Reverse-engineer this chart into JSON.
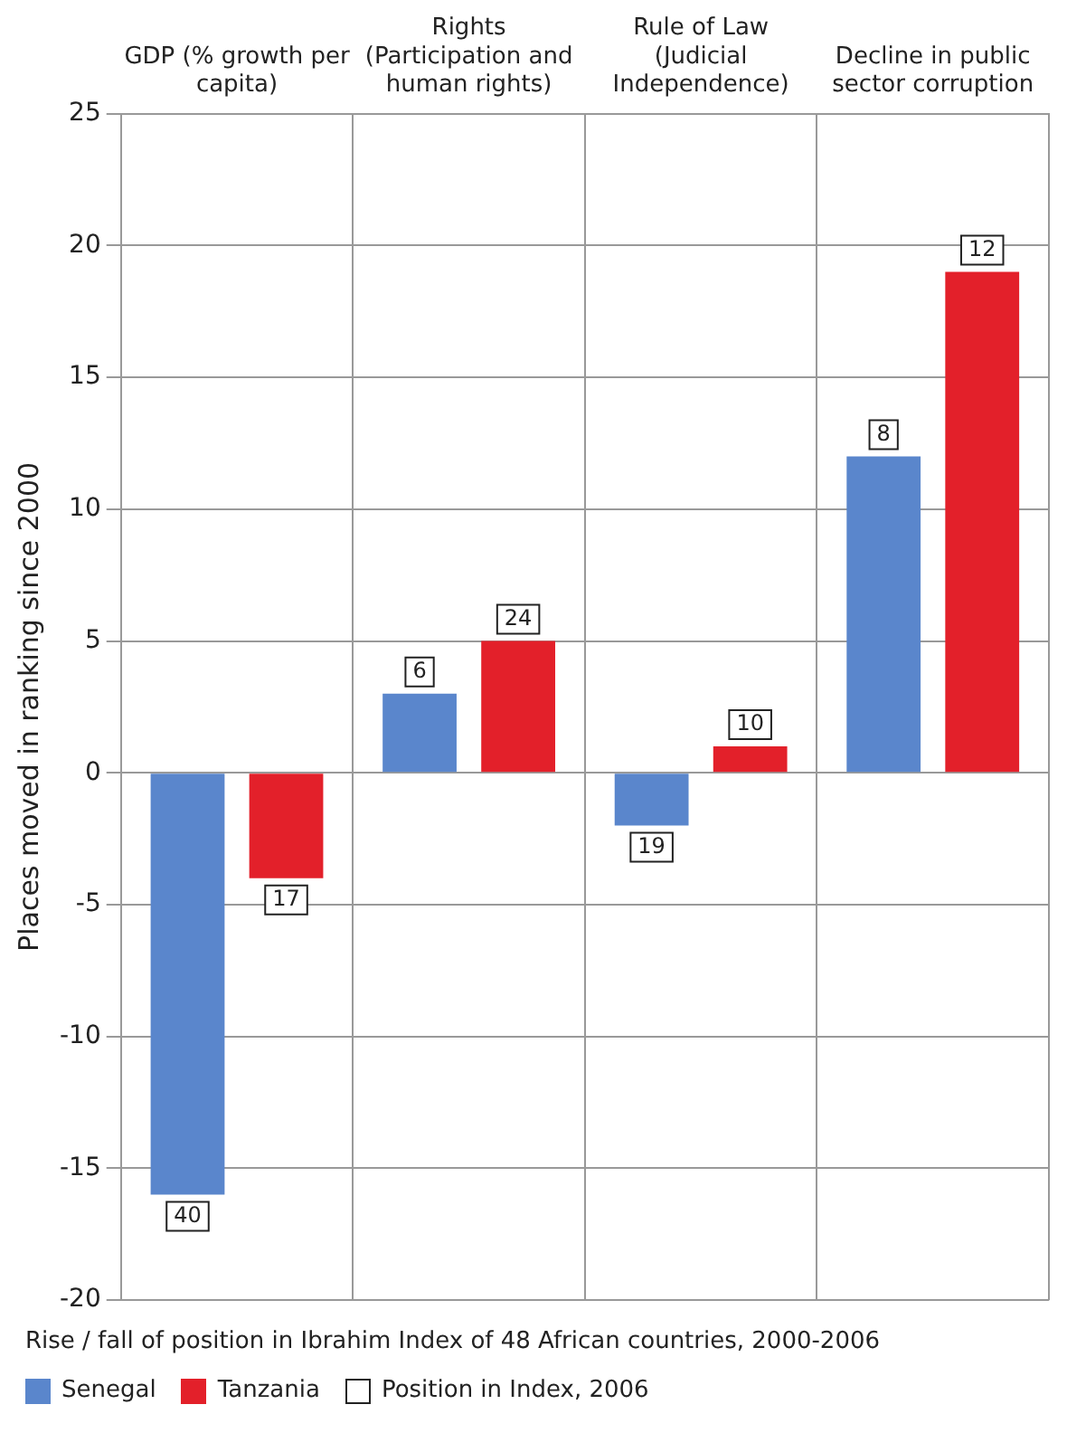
{
  "chart_data": {
    "type": "bar",
    "xlabel": "Rise / fall of position in Ibrahim Index of 48 African countries, 2000-2006",
    "ylabel": "Places moved in ranking since 2000",
    "categories": [
      "GDP (% growth per capita)",
      "Rights (Participation and human rights)",
      "Rule of Law (Judicial Independence)",
      "Decline in public sector corruption"
    ],
    "series": [
      {
        "name": "Senegal",
        "color": "#5a86cc",
        "values": [
          -16,
          3,
          -2,
          12
        ]
      },
      {
        "name": "Tanzania",
        "color": "#e3202a",
        "values": [
          -4,
          5,
          1,
          19
        ]
      }
    ],
    "ylim": [
      -20,
      25
    ],
    "yticks": [
      -20,
      -15,
      -10,
      -5,
      0,
      5,
      10,
      15,
      20,
      25
    ],
    "grid": true,
    "legend": "bottom",
    "annotations": [
      "Position in Index, 2006",
      "40",
      "17",
      "6",
      "24",
      "19",
      "10",
      "8",
      "12"
    ]
  }
}
